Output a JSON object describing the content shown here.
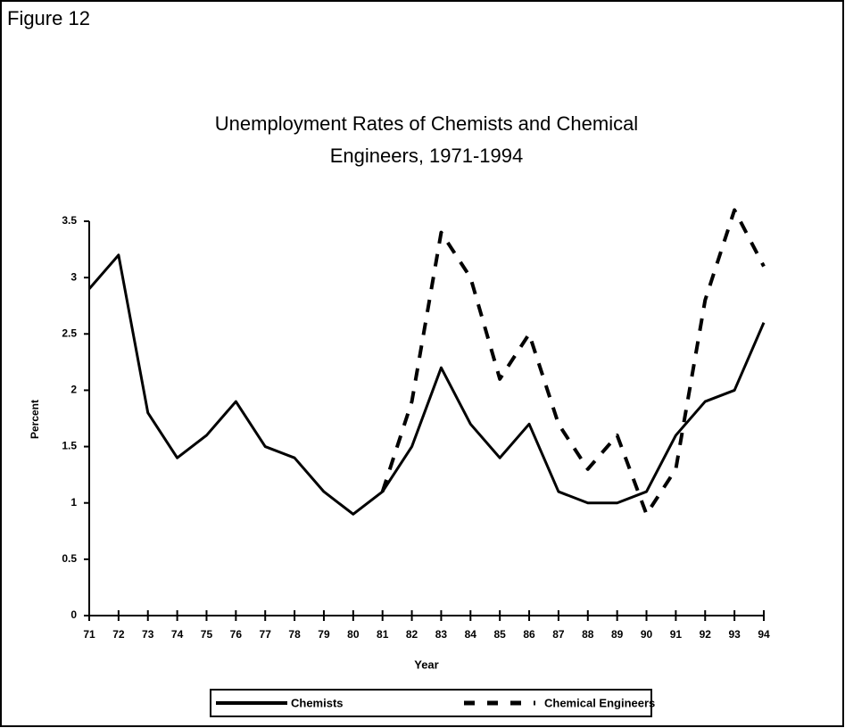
{
  "figure_label": "Figure 12",
  "chart_data": {
    "type": "line",
    "title": [
      "Unemployment Rates of Chemists and Chemical",
      "Engineers, 1971-1994"
    ],
    "x_label": "Year",
    "y_label": "Percent",
    "categories": [
      "71",
      "72",
      "73",
      "74",
      "75",
      "76",
      "77",
      "78",
      "79",
      "80",
      "81",
      "82",
      "83",
      "84",
      "85",
      "86",
      "87",
      "88",
      "89",
      "90",
      "91",
      "92",
      "93",
      "94"
    ],
    "series": [
      {
        "name": "Chemists",
        "color": "#000000",
        "dashed": false,
        "values": [
          2.9,
          3.2,
          1.8,
          1.4,
          1.6,
          1.9,
          1.5,
          1.4,
          1.1,
          0.9,
          1.1,
          1.5,
          2.2,
          1.7,
          1.4,
          1.7,
          1.1,
          1.0,
          1.0,
          1.1,
          1.6,
          1.9,
          2.0,
          2.6
        ]
      },
      {
        "name": "Chemical Engineers",
        "color": "#000000",
        "dashed": true,
        "values": [
          null,
          null,
          null,
          null,
          null,
          null,
          null,
          null,
          null,
          null,
          1.1,
          1.9,
          3.4,
          3.0,
          2.1,
          2.5,
          1.7,
          1.3,
          1.6,
          0.9,
          1.3,
          2.8,
          3.6,
          3.1
        ]
      }
    ],
    "ylim": [
      0,
      3.5
    ],
    "yticks": [
      0,
      0.5,
      1,
      1.5,
      2,
      2.5,
      3,
      3.5
    ],
    "grid": false
  }
}
